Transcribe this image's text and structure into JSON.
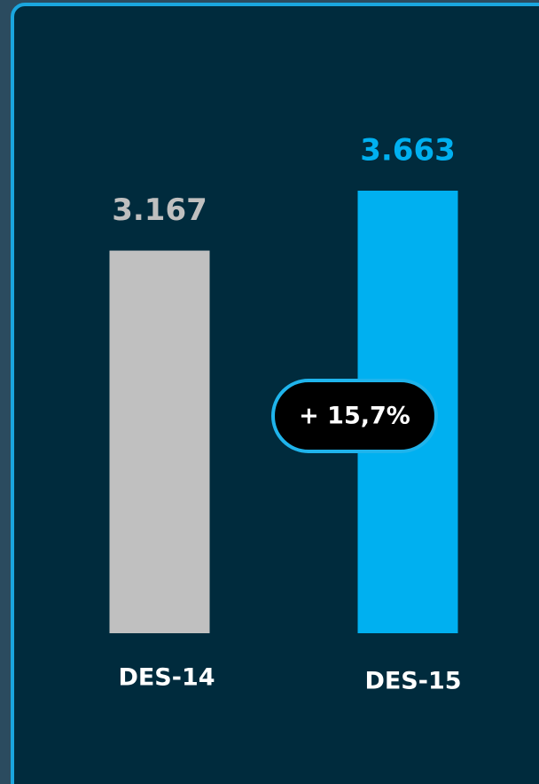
{
  "chart_data": {
    "type": "bar",
    "categories": [
      "DES-14",
      "DES-15"
    ],
    "values": [
      3167,
      3663
    ],
    "value_labels": [
      "3.167",
      "3.663"
    ],
    "colors": [
      "#c0c0c0",
      "#00b0f0"
    ],
    "annotation": "+ 15,7%"
  }
}
